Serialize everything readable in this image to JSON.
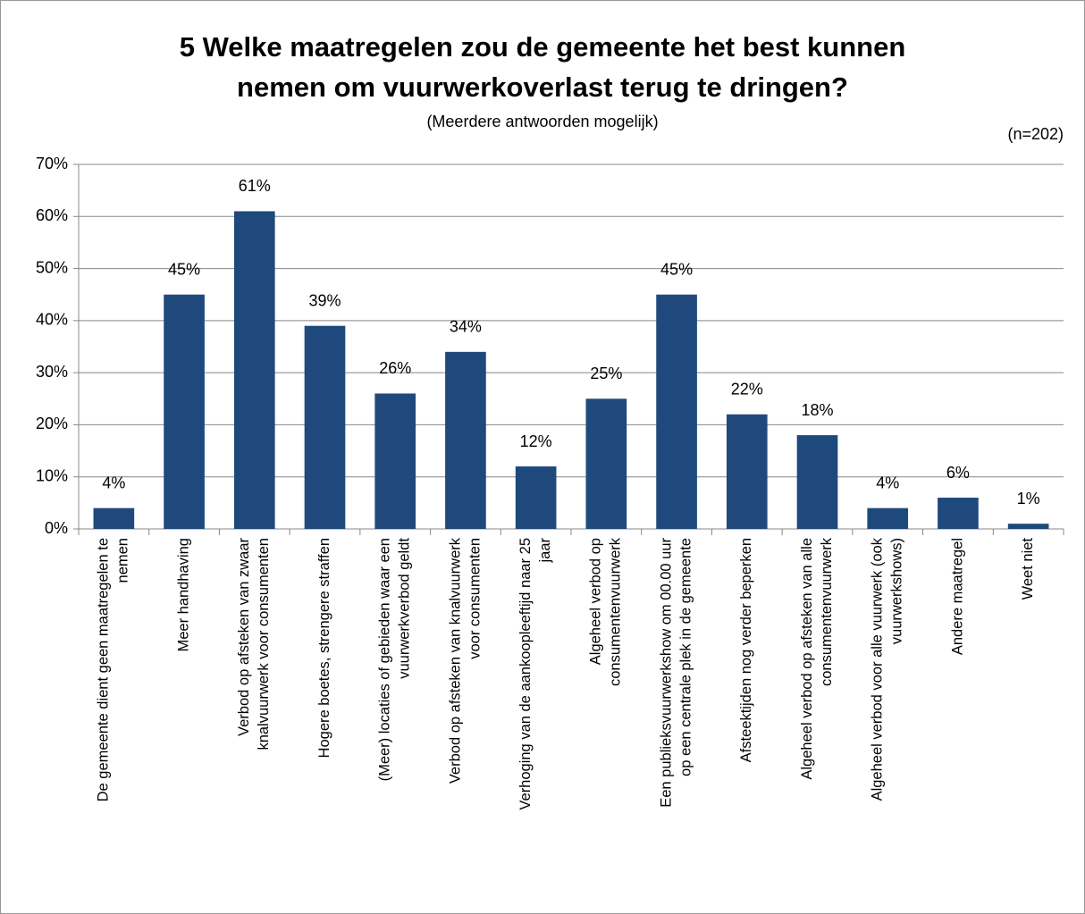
{
  "chart_data": {
    "type": "bar",
    "title": [
      "5 Welke maatregelen zou de gemeente het best kunnen",
      "nemen om vuurwerkoverlast terug te dringen?"
    ],
    "subtitle": "(Meerdere antwoorden mogelijk)",
    "annotation": "(n=202)",
    "categories": [
      [
        "De gemeente dient geen maatregelen te",
        "nemen"
      ],
      [
        "Meer handhaving"
      ],
      [
        "Verbod op afsteken van zwaar",
        "knalvuurwerk voor consumenten"
      ],
      [
        "Hogere boetes, strengere straffen"
      ],
      [
        "(Meer) locaties of gebieden waar een",
        "vuurwerkverbod geldt"
      ],
      [
        "Verbod op afsteken van knalvuurwerk",
        "voor consumenten"
      ],
      [
        "Verhoging van de aankoopleeftijd naar 25",
        "jaar"
      ],
      [
        "Algeheel verbod op",
        "consumentenvuurwerk"
      ],
      [
        "Een publieksvuurwerkshow om 00.00 uur",
        "op een centrale plek in de gemeente"
      ],
      [
        "Afsteektijden nog verder beperken"
      ],
      [
        "Algeheel verbod op afsteken van alle",
        "consumentenvuurwerk"
      ],
      [
        "Algeheel verbod voor alle vuurwerk (ook",
        "vuurwerkshows)"
      ],
      [
        "Andere maatregel"
      ],
      [
        "Weet niet"
      ]
    ],
    "values": [
      4,
      45,
      61,
      39,
      26,
      34,
      12,
      25,
      45,
      22,
      18,
      4,
      6,
      1
    ],
    "value_labels": [
      "4%",
      "45%",
      "61%",
      "39%",
      "26%",
      "34%",
      "12%",
      "25%",
      "45%",
      "22%",
      "18%",
      "4%",
      "6%",
      "1%"
    ],
    "color": "#1f497d",
    "ylim": [
      0,
      70
    ],
    "yticks": [
      {
        "value": 0,
        "label": "0%"
      },
      {
        "value": 10,
        "label": "10%"
      },
      {
        "value": 20,
        "label": "20%"
      },
      {
        "value": 30,
        "label": "30%"
      },
      {
        "value": 40,
        "label": "40%"
      },
      {
        "value": 50,
        "label": "50%"
      },
      {
        "value": 60,
        "label": "60%"
      },
      {
        "value": 70,
        "label": "70%"
      }
    ],
    "grid": true
  }
}
